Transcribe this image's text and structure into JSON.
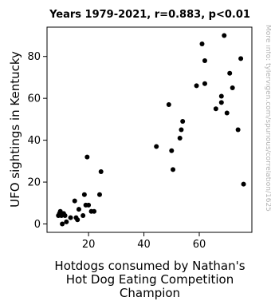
{
  "chart_data": {
    "type": "scatter",
    "title": "Years 1979-2021, r=0.883, p<0.01",
    "xlabel_lines": [
      "Hotdogs consumed by Nathan's",
      "Hot Dog Eating Competition",
      "Champion"
    ],
    "ylabel": "UFO sightings in Kentucky",
    "watermark": "More info: tylervigen.com/spurious/correlation/1625",
    "xlim": [
      5,
      79
    ],
    "ylim": [
      -4,
      94
    ],
    "xticks": [
      20,
      40,
      60
    ],
    "yticks": [
      0,
      20,
      40,
      60,
      80
    ],
    "grid": false,
    "marker_color": "#000000",
    "points": [
      {
        "x": 9.1,
        "y": 4
      },
      {
        "x": 9.5,
        "y": 5
      },
      {
        "x": 9.8,
        "y": 6
      },
      {
        "x": 10.2,
        "y": 4
      },
      {
        "x": 10.5,
        "y": 0
      },
      {
        "x": 11,
        "y": 5
      },
      {
        "x": 11.5,
        "y": 4
      },
      {
        "x": 12,
        "y": 1
      },
      {
        "x": 13.5,
        "y": 3
      },
      {
        "x": 15,
        "y": 11
      },
      {
        "x": 15.5,
        "y": 3
      },
      {
        "x": 16,
        "y": 2
      },
      {
        "x": 16.5,
        "y": 7
      },
      {
        "x": 18,
        "y": 4
      },
      {
        "x": 18.5,
        "y": 14
      },
      {
        "x": 19,
        "y": 9
      },
      {
        "x": 19.5,
        "y": 32
      },
      {
        "x": 20,
        "y": 9
      },
      {
        "x": 21,
        "y": 6
      },
      {
        "x": 22,
        "y": 6
      },
      {
        "x": 24,
        "y": 14
      },
      {
        "x": 24.5,
        "y": 25
      },
      {
        "x": 44.5,
        "y": 37
      },
      {
        "x": 49,
        "y": 57
      },
      {
        "x": 50,
        "y": 35
      },
      {
        "x": 50.5,
        "y": 26
      },
      {
        "x": 53,
        "y": 41
      },
      {
        "x": 53.5,
        "y": 45
      },
      {
        "x": 54,
        "y": 49
      },
      {
        "x": 59,
        "y": 66
      },
      {
        "x": 61,
        "y": 86
      },
      {
        "x": 62,
        "y": 78
      },
      {
        "x": 62,
        "y": 67
      },
      {
        "x": 66,
        "y": 55
      },
      {
        "x": 68,
        "y": 58
      },
      {
        "x": 68,
        "y": 61
      },
      {
        "x": 69,
        "y": 90
      },
      {
        "x": 70,
        "y": 53
      },
      {
        "x": 71,
        "y": 72
      },
      {
        "x": 72,
        "y": 65
      },
      {
        "x": 74,
        "y": 45
      },
      {
        "x": 75,
        "y": 79
      },
      {
        "x": 76,
        "y": 19
      }
    ]
  }
}
